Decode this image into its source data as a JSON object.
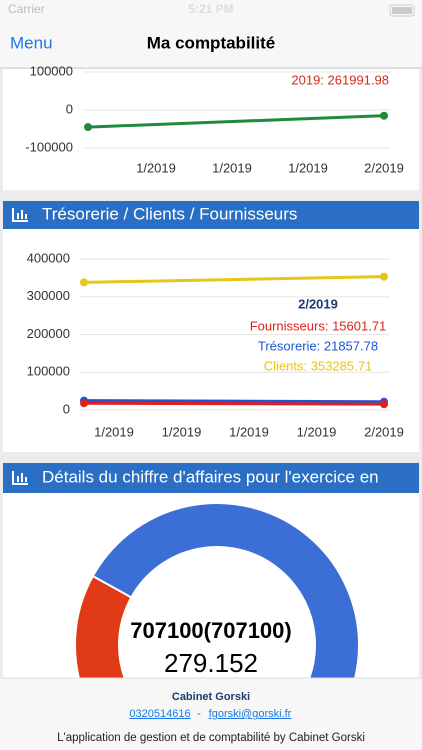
{
  "status_bar": {
    "carrier": "Carrier",
    "time": "5:21 PM"
  },
  "nav": {
    "back": "Menu",
    "title": "Ma comptabilité"
  },
  "chart1": {
    "type": "line",
    "ylim": [
      -100000,
      100000
    ],
    "yticks": [
      -100000,
      0,
      100000
    ],
    "xlabels": [
      "1/2019",
      "1/2019",
      "1/2019",
      "2/2019"
    ],
    "series": [
      {
        "color": "#1f8a3b",
        "values": [
          -45000,
          -15000
        ]
      }
    ],
    "annotation": "2019: 261991.98"
  },
  "chart2": {
    "type": "line",
    "title": "Trésorerie / Clients / Fournisseurs",
    "ylim": [
      0,
      400000
    ],
    "yticks": [
      0,
      100000,
      200000,
      300000,
      400000
    ],
    "xlabels": [
      "1/2019",
      "1/2019",
      "1/2019",
      "1/2019",
      "2/2019"
    ],
    "series": [
      {
        "color": "#e6c619",
        "values": [
          338000,
          353285.71
        ]
      },
      {
        "color": "#1f55d4",
        "values": [
          25000,
          21857.78
        ]
      },
      {
        "color": "#e0201c",
        "values": [
          18000,
          15601.71
        ]
      }
    ],
    "tooltip": {
      "title": "2/2019",
      "lines": [
        {
          "text": "Fournisseurs: 15601.71",
          "color": "#e0201c"
        },
        {
          "text": "Trésorerie: 21857.78",
          "color": "#1f55d4"
        },
        {
          "text": "Clients: 353285.71",
          "color": "#e6c619"
        }
      ]
    }
  },
  "chart3": {
    "type": "pie",
    "title": "Détails du chiffre d'affaires pour l'exercice en",
    "values": [
      84,
      16
    ],
    "colors": [
      "#3b6fd6",
      "#e03a17"
    ],
    "center_title": "707100(707100)",
    "center_value": "279.152"
  },
  "footer": {
    "company": "Cabinet Gorski",
    "phone": "0320514616",
    "separator": "-",
    "email": "fgorski@gorski.fr",
    "tagline": "L'application de gestion et de comptabilité by Cabinet Gorski"
  }
}
